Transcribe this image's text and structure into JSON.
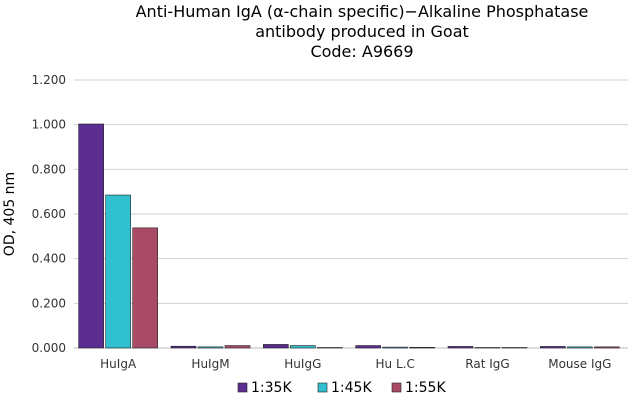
{
  "chart_data": {
    "type": "bar",
    "title": "Anti-Human IgA (α-chain specific)−Alkaline Phosphatase antibody produced in Goat",
    "title_lines": [
      "Anti-Human IgA (α-chain specific)−Alkaline Phosphatase",
      "antibody produced in Goat",
      "Code: A9669"
    ],
    "xlabel": "",
    "ylabel": "OD, 405 nm",
    "ylim": [
      0,
      1.2
    ],
    "yticks": [
      "0.000",
      "0.200",
      "0.400",
      "0.600",
      "0.800",
      "1.000",
      "1.200"
    ],
    "ytick_values": [
      0,
      0.2,
      0.4,
      0.6,
      0.8,
      1.0,
      1.2
    ],
    "grid": true,
    "legend_position": "bottom",
    "categories": [
      "HuIgA",
      "HuIgM",
      "HuIgG",
      "Hu L.C",
      "Rat IgG",
      "Mouse IgG"
    ],
    "series": [
      {
        "name": "1:35K",
        "color": "#5b2d91",
        "values": [
          1.003,
          0.008,
          0.016,
          0.011,
          0.007,
          0.007
        ]
      },
      {
        "name": "1:45K",
        "color": "#31c0cf",
        "values": [
          0.685,
          0.005,
          0.011,
          0.004,
          0.001,
          0.005
        ]
      },
      {
        "name": "1:55K",
        "color": "#a94a66",
        "values": [
          0.538,
          0.011,
          0.002,
          0.003,
          0.001,
          0.005
        ]
      }
    ]
  }
}
